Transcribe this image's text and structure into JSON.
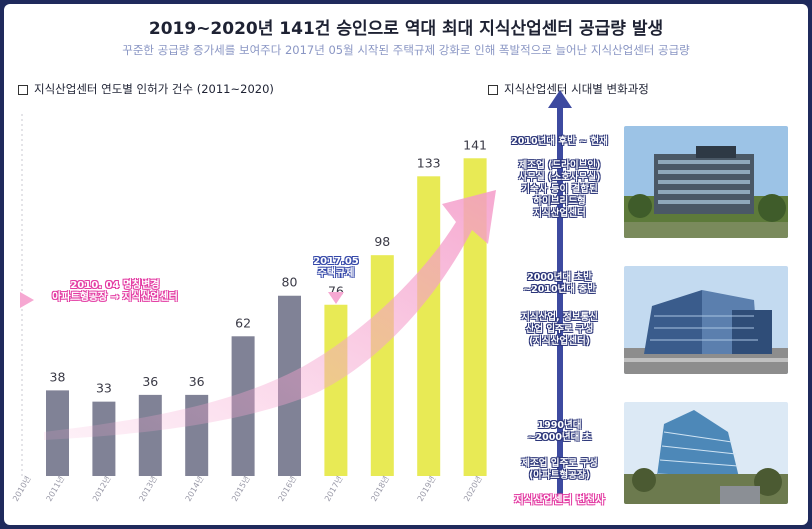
{
  "header": {
    "title": "2019~2020년 141건 승인으로 역대 최대 지식산업센터 공급량 발생",
    "subtitle": "꾸준한 공급량 증가세를 보여주다 2017년 05월 시작된 주택규제 강화로 인해 폭발적으로 늘어난 지식산업센터 공급량"
  },
  "left_section": {
    "heading": "지식산업센터 연도별 인허가 건수 (2011~2020)"
  },
  "right_section": {
    "heading": "지식산업센터 시대별 변화과정"
  },
  "colors": {
    "grey_bar": "#808296",
    "yellow_bar": "#e8ea55",
    "pink": "#f6a8d2",
    "timeline": "#3d4aa0",
    "frame": "#1f2a5c"
  },
  "chart_data": {
    "type": "bar",
    "categories": [
      "2011년",
      "2012년",
      "2013년",
      "2014년",
      "2015년",
      "2016년",
      "2017년",
      "2018년",
      "2019년",
      "2020년"
    ],
    "extra_tick": "2010년",
    "values": [
      38,
      33,
      36,
      36,
      62,
      80,
      76,
      98,
      133,
      141
    ],
    "highlight_from_index": 6,
    "ylim": [
      0,
      150
    ],
    "annotations": {
      "a2010": [
        "2010. 04 명칭변경",
        "아파트형공장 → 지식산업센터"
      ],
      "a2017": [
        "2017.05",
        "주택규제"
      ]
    }
  },
  "timeline": {
    "era1": {
      "period": "2010년대 후반 ~ 현재",
      "desc": [
        "제조업 (드라이브인)",
        "사무실 (소호사무실)",
        "기숙사 등이 결합된",
        "하이브리드형",
        "지식산업센터"
      ]
    },
    "era2": {
      "period": [
        "2000년대 초반",
        "~2010년대 중반"
      ],
      "desc": [
        "지식산업, 정보통신",
        "산업 입주로 구성",
        "(지식산업센터)"
      ]
    },
    "era3": {
      "period": [
        "1990년대",
        "~2000년대 초"
      ],
      "desc": [
        "제조업 입주로 구성",
        "(아파트형공장)"
      ]
    },
    "caption": "지식산업센터 변천사"
  }
}
